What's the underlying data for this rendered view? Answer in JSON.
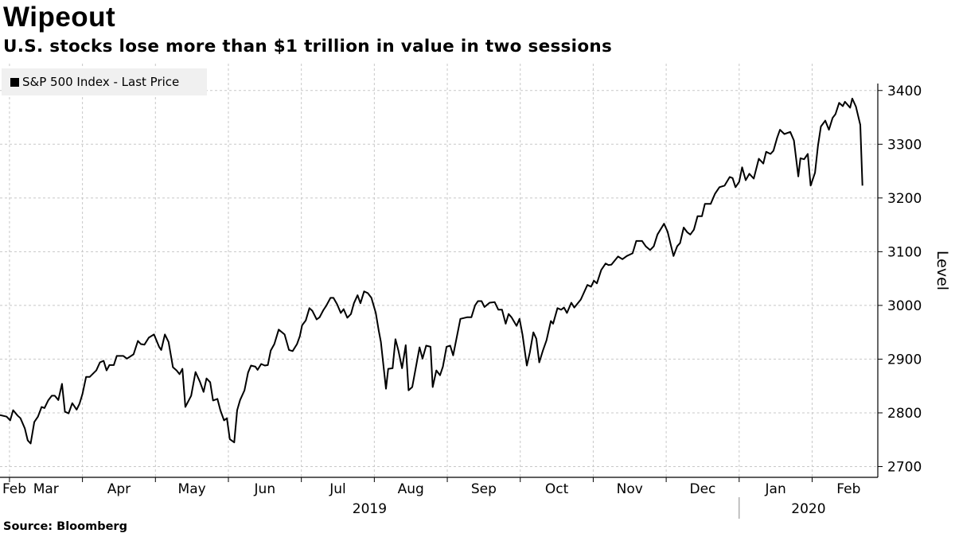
{
  "header": {
    "title": "Wipeout",
    "subtitle": "U.S. stocks lose more than $1 trillion in value in two sessions"
  },
  "footer": {
    "source": "Source: Bloomberg"
  },
  "colors": {
    "line": "#000000",
    "grid": "#c8c8c8",
    "legend_bg": "#f0f0f0"
  },
  "chart_data": {
    "type": "line",
    "title": "Wipeout",
    "subtitle": "U.S. stocks lose more than $1 trillion in value in two sessions",
    "xlabel": "",
    "ylabel": "Level",
    "x_units": "months since Feb 1, 2019 (1 = Mar 1 2019, 12 = Feb 1 2020)",
    "xlim": [
      0.87,
      12.9
    ],
    "ylim": [
      2680,
      3450
    ],
    "yticks": [
      2700,
      2800,
      2900,
      3000,
      3100,
      3200,
      3300,
      3400
    ],
    "y_axis_side": "right",
    "grid": true,
    "legend": {
      "position": "top-left",
      "entries": [
        "S&P 500 Index - Last Price"
      ]
    },
    "x_ticks": [
      1,
      2,
      3,
      4,
      5,
      6,
      7,
      8,
      9,
      10,
      11,
      12
    ],
    "month_labels": [
      {
        "label": "Feb",
        "m": 0
      },
      {
        "label": "Mar",
        "m": 1
      },
      {
        "label": "Apr",
        "m": 2
      },
      {
        "label": "May",
        "m": 3
      },
      {
        "label": "Jun",
        "m": 4
      },
      {
        "label": "Jul",
        "m": 5
      },
      {
        "label": "Aug",
        "m": 6
      },
      {
        "label": "Sep",
        "m": 7
      },
      {
        "label": "Oct",
        "m": 8
      },
      {
        "label": "Nov",
        "m": 9
      },
      {
        "label": "Dec",
        "m": 10
      },
      {
        "label": "Jan",
        "m": 11
      },
      {
        "label": "Feb",
        "m": 12
      }
    ],
    "year_labels": [
      {
        "label": "2019",
        "from": 0.87,
        "to": 11
      },
      {
        "label": "2020",
        "from": 11,
        "to": 12.9
      }
    ],
    "series": [
      {
        "name": "S&P 500 Index - Last Price",
        "points": [
          [
            0.87,
            2796
          ],
          [
            0.96,
            2793
          ],
          [
            1.01,
            2786
          ],
          [
            1.05,
            2805
          ],
          [
            1.11,
            2795
          ],
          [
            1.15,
            2790
          ],
          [
            1.21,
            2771
          ],
          [
            1.25,
            2749
          ],
          [
            1.29,
            2743
          ],
          [
            1.34,
            2783
          ],
          [
            1.39,
            2793
          ],
          [
            1.44,
            2811
          ],
          [
            1.48,
            2809
          ],
          [
            1.53,
            2823
          ],
          [
            1.58,
            2832
          ],
          [
            1.62,
            2832
          ],
          [
            1.67,
            2824
          ],
          [
            1.72,
            2854
          ],
          [
            1.76,
            2802
          ],
          [
            1.81,
            2799
          ],
          [
            1.86,
            2818
          ],
          [
            1.92,
            2806
          ],
          [
            1.96,
            2817
          ],
          [
            2.0,
            2835
          ],
          [
            2.05,
            2867
          ],
          [
            2.1,
            2867
          ],
          [
            2.19,
            2879
          ],
          [
            2.24,
            2894
          ],
          [
            2.29,
            2897
          ],
          [
            2.33,
            2879
          ],
          [
            2.37,
            2889
          ],
          [
            2.43,
            2889
          ],
          [
            2.47,
            2906
          ],
          [
            2.56,
            2906
          ],
          [
            2.61,
            2901
          ],
          [
            2.7,
            2909
          ],
          [
            2.76,
            2934
          ],
          [
            2.8,
            2928
          ],
          [
            2.85,
            2927
          ],
          [
            2.91,
            2940
          ],
          [
            2.98,
            2946
          ],
          [
            3.05,
            2923
          ],
          [
            3.08,
            2917
          ],
          [
            3.13,
            2946
          ],
          [
            3.18,
            2932
          ],
          [
            3.24,
            2885
          ],
          [
            3.29,
            2879
          ],
          [
            3.33,
            2872
          ],
          [
            3.37,
            2882
          ],
          [
            3.41,
            2811
          ],
          [
            3.49,
            2832
          ],
          [
            3.55,
            2876
          ],
          [
            3.61,
            2858
          ],
          [
            3.66,
            2839
          ],
          [
            3.7,
            2864
          ],
          [
            3.75,
            2857
          ],
          [
            3.79,
            2823
          ],
          [
            3.85,
            2826
          ],
          [
            3.89,
            2805
          ],
          [
            3.94,
            2786
          ],
          [
            3.98,
            2790
          ],
          [
            4.02,
            2751
          ],
          [
            4.08,
            2745
          ],
          [
            4.12,
            2805
          ],
          [
            4.16,
            2824
          ],
          [
            4.22,
            2842
          ],
          [
            4.27,
            2875
          ],
          [
            4.31,
            2888
          ],
          [
            4.37,
            2886
          ],
          [
            4.4,
            2880
          ],
          [
            4.45,
            2891
          ],
          [
            4.5,
            2888
          ],
          [
            4.54,
            2889
          ],
          [
            4.58,
            2916
          ],
          [
            4.63,
            2928
          ],
          [
            4.69,
            2955
          ],
          [
            4.77,
            2946
          ],
          [
            4.83,
            2917
          ],
          [
            4.88,
            2915
          ],
          [
            4.94,
            2928
          ],
          [
            4.98,
            2943
          ],
          [
            5.01,
            2963
          ],
          [
            5.06,
            2972
          ],
          [
            5.11,
            2995
          ],
          [
            5.15,
            2990
          ],
          [
            5.21,
            2974
          ],
          [
            5.25,
            2978
          ],
          [
            5.3,
            2991
          ],
          [
            5.34,
            2999
          ],
          [
            5.4,
            3014
          ],
          [
            5.44,
            3014
          ],
          [
            5.49,
            3002
          ],
          [
            5.54,
            2986
          ],
          [
            5.58,
            2993
          ],
          [
            5.63,
            2977
          ],
          [
            5.68,
            2984
          ],
          [
            5.72,
            3004
          ],
          [
            5.77,
            3019
          ],
          [
            5.81,
            3004
          ],
          [
            5.86,
            3026
          ],
          [
            5.91,
            3023
          ],
          [
            5.96,
            3014
          ],
          [
            6.02,
            2986
          ],
          [
            6.06,
            2953
          ],
          [
            6.09,
            2932
          ],
          [
            6.16,
            2845
          ],
          [
            6.19,
            2882
          ],
          [
            6.25,
            2883
          ],
          [
            6.29,
            2937
          ],
          [
            6.33,
            2916
          ],
          [
            6.38,
            2883
          ],
          [
            6.43,
            2926
          ],
          [
            6.47,
            2842
          ],
          [
            6.52,
            2848
          ],
          [
            6.62,
            2922
          ],
          [
            6.66,
            2901
          ],
          [
            6.71,
            2925
          ],
          [
            6.77,
            2923
          ],
          [
            6.8,
            2848
          ],
          [
            6.85,
            2879
          ],
          [
            6.9,
            2870
          ],
          [
            6.94,
            2886
          ],
          [
            6.99,
            2923
          ],
          [
            7.04,
            2925
          ],
          [
            7.08,
            2907
          ],
          [
            7.18,
            2975
          ],
          [
            7.27,
            2978
          ],
          [
            7.33,
            2978
          ],
          [
            7.38,
            3000
          ],
          [
            7.42,
            3008
          ],
          [
            7.47,
            3008
          ],
          [
            7.51,
            2997
          ],
          [
            7.58,
            3005
          ],
          [
            7.65,
            3006
          ],
          [
            7.7,
            2992
          ],
          [
            7.75,
            2992
          ],
          [
            7.8,
            2966
          ],
          [
            7.84,
            2984
          ],
          [
            7.88,
            2978
          ],
          [
            7.95,
            2962
          ],
          [
            7.99,
            2975
          ],
          [
            8.03,
            2946
          ],
          [
            8.09,
            2888
          ],
          [
            8.13,
            2912
          ],
          [
            8.18,
            2950
          ],
          [
            8.22,
            2938
          ],
          [
            8.26,
            2894
          ],
          [
            8.31,
            2916
          ],
          [
            8.36,
            2935
          ],
          [
            8.42,
            2971
          ],
          [
            8.45,
            2966
          ],
          [
            8.51,
            2995
          ],
          [
            8.56,
            2992
          ],
          [
            8.6,
            2996
          ],
          [
            8.64,
            2986
          ],
          [
            8.7,
            3005
          ],
          [
            8.74,
            2996
          ],
          [
            8.83,
            3011
          ],
          [
            8.92,
            3038
          ],
          [
            8.97,
            3035
          ],
          [
            9.01,
            3046
          ],
          [
            9.05,
            3041
          ],
          [
            9.11,
            3066
          ],
          [
            9.17,
            3078
          ],
          [
            9.21,
            3075
          ],
          [
            9.25,
            3076
          ],
          [
            9.34,
            3091
          ],
          [
            9.4,
            3086
          ],
          [
            9.46,
            3092
          ],
          [
            9.54,
            3097
          ],
          [
            9.59,
            3120
          ],
          [
            9.67,
            3120
          ],
          [
            9.72,
            3110
          ],
          [
            9.78,
            3103
          ],
          [
            9.83,
            3110
          ],
          [
            9.88,
            3132
          ],
          [
            9.97,
            3152
          ],
          [
            10.02,
            3137
          ],
          [
            10.1,
            3092
          ],
          [
            10.15,
            3110
          ],
          [
            10.19,
            3116
          ],
          [
            10.24,
            3145
          ],
          [
            10.29,
            3136
          ],
          [
            10.33,
            3132
          ],
          [
            10.38,
            3141
          ],
          [
            10.43,
            3166
          ],
          [
            10.49,
            3166
          ],
          [
            10.53,
            3189
          ],
          [
            10.61,
            3189
          ],
          [
            10.67,
            3208
          ],
          [
            10.73,
            3220
          ],
          [
            10.8,
            3223
          ],
          [
            10.87,
            3239
          ],
          [
            10.91,
            3237
          ],
          [
            10.95,
            3220
          ],
          [
            11.0,
            3230
          ],
          [
            11.04,
            3257
          ],
          [
            11.09,
            3233
          ],
          [
            11.14,
            3245
          ],
          [
            11.2,
            3236
          ],
          [
            11.27,
            3273
          ],
          [
            11.33,
            3264
          ],
          [
            11.37,
            3286
          ],
          [
            11.43,
            3282
          ],
          [
            11.47,
            3288
          ],
          [
            11.52,
            3312
          ],
          [
            11.56,
            3327
          ],
          [
            11.62,
            3319
          ],
          [
            11.7,
            3323
          ],
          [
            11.75,
            3307
          ],
          [
            11.81,
            3240
          ],
          [
            11.84,
            3274
          ],
          [
            11.89,
            3272
          ],
          [
            11.94,
            3282
          ],
          [
            11.98,
            3223
          ],
          [
            12.04,
            3247
          ],
          [
            12.08,
            3297
          ],
          [
            12.12,
            3333
          ],
          [
            12.18,
            3344
          ],
          [
            12.23,
            3327
          ],
          [
            12.28,
            3349
          ],
          [
            12.32,
            3356
          ],
          [
            12.37,
            3377
          ],
          [
            12.42,
            3371
          ],
          [
            12.45,
            3379
          ],
          [
            12.52,
            3368
          ],
          [
            12.55,
            3385
          ],
          [
            12.6,
            3370
          ],
          [
            12.66,
            3336
          ],
          [
            12.69,
            3223
          ]
        ]
      }
    ]
  }
}
